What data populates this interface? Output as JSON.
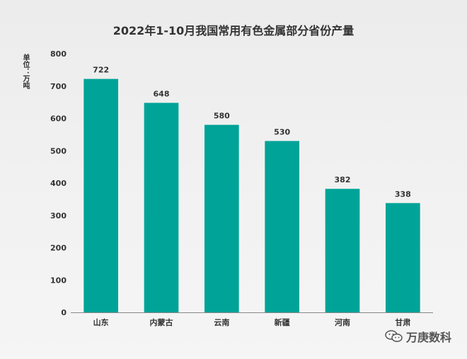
{
  "chart_data": {
    "type": "bar",
    "title": "2022年1-10月我国常用有色金属部分省份产量",
    "ylabel": "单位：万吨",
    "xlabel": "",
    "categories": [
      "山东",
      "内蒙古",
      "云南",
      "新疆",
      "河南",
      "甘肃"
    ],
    "values": [
      722,
      648,
      580,
      530,
      382,
      338
    ],
    "ylim": [
      0,
      800
    ],
    "yticks": [
      0,
      100,
      200,
      300,
      400,
      500,
      600,
      700,
      800
    ],
    "grid": false,
    "bar_color": "#00a398",
    "legend": "none"
  },
  "watermark": {
    "text": "万庚数科",
    "icon": "wechat-icon"
  }
}
